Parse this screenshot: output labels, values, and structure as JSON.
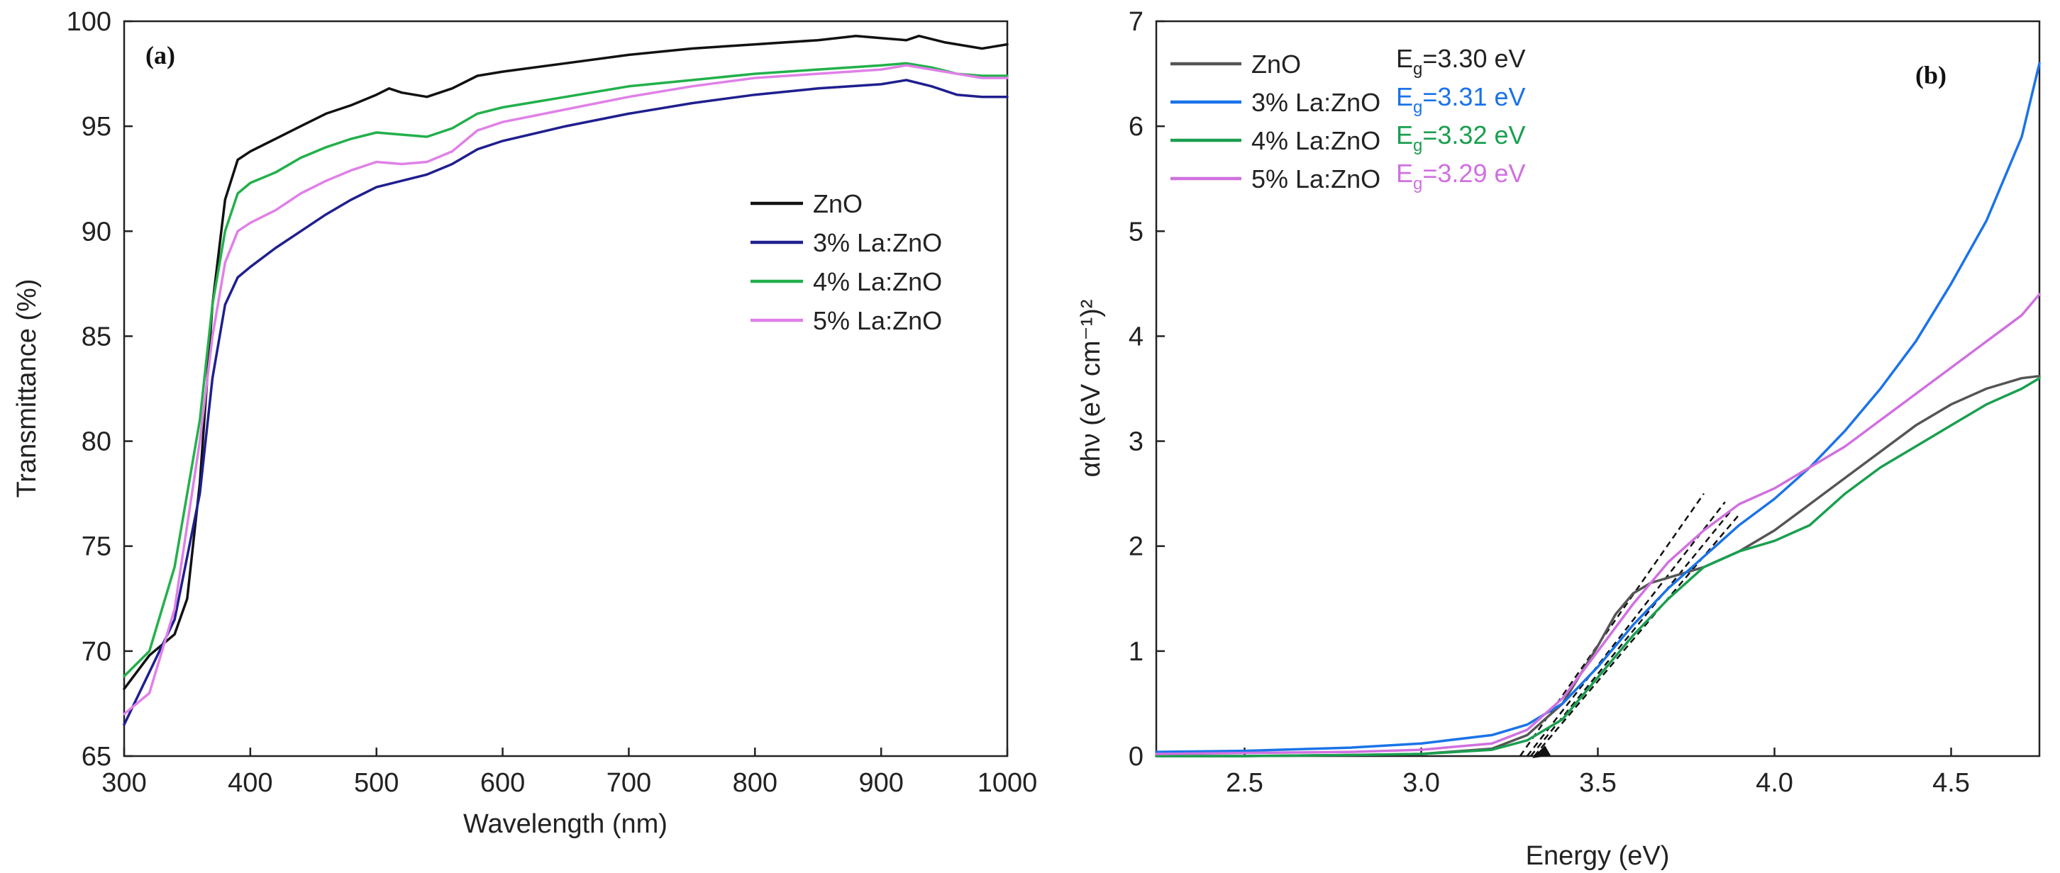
{
  "chart_data": [
    {
      "type": "line",
      "panel_label": "(a)",
      "xlabel": "Wavelength (nm)",
      "ylabel": "Transmittance (%)",
      "xlim": [
        300,
        1000
      ],
      "ylim": [
        65,
        100
      ],
      "xticks": [
        300,
        400,
        500,
        600,
        700,
        800,
        900,
        1000
      ],
      "yticks": [
        65,
        70,
        75,
        80,
        85,
        90,
        95,
        100
      ],
      "legend_position": "center-right",
      "series": [
        {
          "name": "ZnO",
          "color": "#111111",
          "x": [
            300,
            320,
            340,
            350,
            360,
            370,
            380,
            390,
            400,
            420,
            440,
            460,
            480,
            500,
            510,
            520,
            540,
            560,
            580,
            600,
            650,
            700,
            750,
            800,
            850,
            880,
            900,
            920,
            930,
            950,
            980,
            1000
          ],
          "y": [
            68.2,
            69.8,
            70.8,
            72.5,
            78.0,
            86.5,
            91.5,
            93.4,
            93.8,
            94.4,
            95.0,
            95.6,
            96.0,
            96.5,
            96.8,
            96.6,
            96.4,
            96.8,
            97.4,
            97.6,
            98.0,
            98.4,
            98.7,
            98.9,
            99.1,
            99.3,
            99.2,
            99.1,
            99.3,
            99.0,
            98.7,
            98.9
          ]
        },
        {
          "name": "3% La:ZnO",
          "color": "#1f1f8f",
          "x": [
            300,
            320,
            340,
            360,
            370,
            380,
            390,
            400,
            420,
            440,
            460,
            480,
            500,
            520,
            540,
            560,
            580,
            600,
            650,
            700,
            750,
            800,
            850,
            900,
            920,
            940,
            960,
            980,
            1000
          ],
          "y": [
            66.5,
            69.0,
            71.5,
            77.5,
            83.0,
            86.5,
            87.8,
            88.3,
            89.2,
            90.0,
            90.8,
            91.5,
            92.1,
            92.4,
            92.7,
            93.2,
            93.9,
            94.3,
            95.0,
            95.6,
            96.1,
            96.5,
            96.8,
            97.0,
            97.2,
            96.9,
            96.5,
            96.4,
            96.4
          ]
        },
        {
          "name": "4% La:ZnO",
          "color": "#22b04b",
          "x": [
            300,
            320,
            340,
            360,
            370,
            380,
            390,
            400,
            420,
            440,
            460,
            480,
            500,
            520,
            540,
            560,
            580,
            600,
            650,
            700,
            750,
            800,
            850,
            900,
            920,
            940,
            960,
            980,
            1000
          ],
          "y": [
            68.8,
            70.0,
            74.0,
            81.0,
            86.5,
            90.0,
            91.8,
            92.3,
            92.8,
            93.5,
            94.0,
            94.4,
            94.7,
            94.6,
            94.5,
            94.9,
            95.6,
            95.9,
            96.4,
            96.9,
            97.2,
            97.5,
            97.7,
            97.9,
            98.0,
            97.8,
            97.5,
            97.4,
            97.4
          ]
        },
        {
          "name": "5% La:ZnO",
          "color": "#e080e8",
          "x": [
            300,
            320,
            340,
            360,
            370,
            380,
            390,
            400,
            420,
            440,
            460,
            480,
            500,
            520,
            540,
            560,
            580,
            600,
            650,
            700,
            750,
            800,
            850,
            900,
            920,
            940,
            960,
            980,
            1000
          ],
          "y": [
            67.0,
            68.0,
            72.0,
            80.0,
            85.0,
            88.5,
            90.0,
            90.4,
            91.0,
            91.8,
            92.4,
            92.9,
            93.3,
            93.2,
            93.3,
            93.8,
            94.8,
            95.2,
            95.8,
            96.4,
            96.9,
            97.3,
            97.5,
            97.7,
            97.9,
            97.7,
            97.5,
            97.3,
            97.3
          ]
        }
      ]
    },
    {
      "type": "line",
      "panel_label": "(b)",
      "xlabel": "Energy (eV)",
      "ylabel": "αhν (eV cm⁻¹)²",
      "xlim": [
        2.25,
        4.75
      ],
      "ylim": [
        0,
        7
      ],
      "xticks": [
        2.5,
        3.0,
        3.5,
        4.0,
        4.5
      ],
      "yticks": [
        0,
        1,
        2,
        3,
        4,
        5,
        6,
        7
      ],
      "legend_position": "top-left",
      "series": [
        {
          "name": "ZnO",
          "color": "#555555",
          "band_gap": "E_g=3.30 eV",
          "x": [
            2.25,
            2.5,
            2.8,
            3.0,
            3.2,
            3.3,
            3.4,
            3.5,
            3.55,
            3.6,
            3.65,
            3.7,
            3.75,
            3.8,
            3.9,
            4.0,
            4.1,
            4.2,
            4.3,
            4.4,
            4.5,
            4.6,
            4.7,
            4.75
          ],
          "y": [
            0.0,
            0.0,
            0.01,
            0.02,
            0.07,
            0.2,
            0.5,
            1.05,
            1.35,
            1.55,
            1.65,
            1.7,
            1.75,
            1.8,
            1.95,
            2.15,
            2.4,
            2.65,
            2.9,
            3.15,
            3.35,
            3.5,
            3.6,
            3.62
          ]
        },
        {
          "name": "3% La:ZnO",
          "color": "#1a73e8",
          "band_gap": "E_g=3.31 eV",
          "x": [
            2.25,
            2.5,
            2.8,
            3.0,
            3.2,
            3.3,
            3.4,
            3.5,
            3.6,
            3.7,
            3.8,
            3.9,
            4.0,
            4.1,
            4.2,
            4.3,
            4.4,
            4.5,
            4.6,
            4.7,
            4.75
          ],
          "y": [
            0.04,
            0.05,
            0.08,
            0.12,
            0.2,
            0.3,
            0.5,
            0.85,
            1.25,
            1.6,
            1.9,
            2.2,
            2.45,
            2.75,
            3.1,
            3.5,
            3.95,
            4.5,
            5.1,
            5.9,
            6.6
          ]
        },
        {
          "name": "4% La:ZnO",
          "color": "#1a9f50",
          "band_gap": "E_g=3.32 eV",
          "x": [
            2.25,
            2.5,
            2.8,
            3.0,
            3.2,
            3.3,
            3.4,
            3.5,
            3.6,
            3.7,
            3.8,
            3.9,
            4.0,
            4.1,
            4.2,
            4.3,
            4.4,
            4.5,
            4.6,
            4.7,
            4.75
          ],
          "y": [
            0.0,
            0.0,
            0.01,
            0.02,
            0.06,
            0.15,
            0.35,
            0.75,
            1.15,
            1.5,
            1.8,
            1.95,
            2.05,
            2.2,
            2.5,
            2.75,
            2.95,
            3.15,
            3.35,
            3.5,
            3.6
          ]
        },
        {
          "name": "5% La:ZnO",
          "color": "#d070e0",
          "band_gap": "E_g=3.29 eV",
          "x": [
            2.25,
            2.5,
            2.8,
            3.0,
            3.2,
            3.3,
            3.4,
            3.5,
            3.6,
            3.7,
            3.8,
            3.9,
            4.0,
            4.1,
            4.2,
            4.3,
            4.4,
            4.5,
            4.6,
            4.7,
            4.75
          ],
          "y": [
            0.02,
            0.03,
            0.04,
            0.06,
            0.12,
            0.25,
            0.55,
            1.0,
            1.45,
            1.85,
            2.15,
            2.4,
            2.55,
            2.75,
            2.95,
            3.2,
            3.45,
            3.7,
            3.95,
            4.2,
            4.4
          ]
        }
      ],
      "tangent_lines": [
        {
          "x": [
            3.28,
            3.8
          ],
          "y": [
            0.0,
            2.5
          ]
        },
        {
          "x": [
            3.3,
            3.86
          ],
          "y": [
            0.0,
            2.42
          ]
        },
        {
          "x": [
            3.31,
            3.88
          ],
          "y": [
            0.0,
            2.35
          ]
        },
        {
          "x": [
            3.32,
            3.9
          ],
          "y": [
            0.0,
            2.3
          ]
        }
      ]
    }
  ]
}
